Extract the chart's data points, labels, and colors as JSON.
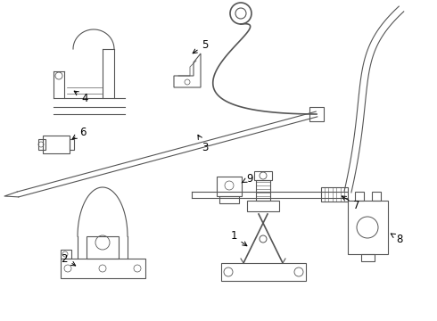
{
  "background_color": "#ffffff",
  "line_color": "#555555",
  "label_color": "#000000",
  "label_fontsize": 8.5,
  "fig_width": 4.9,
  "fig_height": 3.6,
  "dpi": 100
}
